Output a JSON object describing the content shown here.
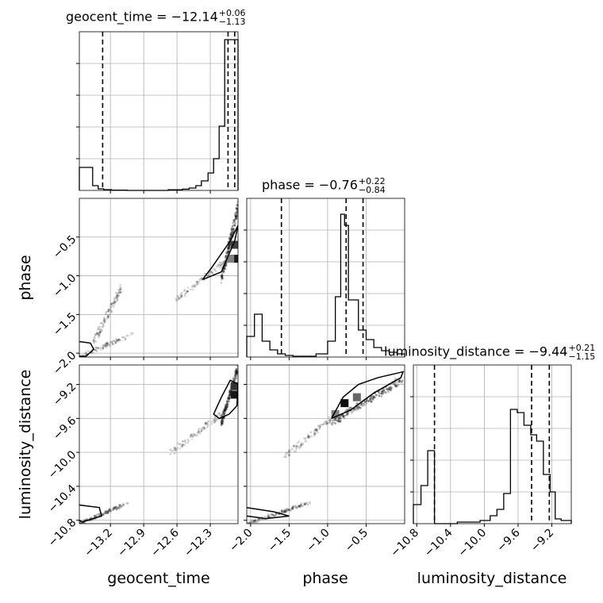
{
  "chart_data": {
    "type": "corner",
    "parameters": [
      "geocent_time",
      "phase",
      "luminosity_distance"
    ],
    "axis_labels": {
      "x": [
        "geocent_time",
        "phase",
        "luminosity_distance"
      ],
      "y": [
        "phase",
        "luminosity_distance"
      ]
    },
    "titles": [
      {
        "param": "geocent_time",
        "name": "geocent_time",
        "median": "−12.14",
        "plus": "+0.06",
        "minus": "−1.13"
      },
      {
        "param": "phase",
        "name": "phase",
        "median": "−0.76",
        "plus": "+0.22",
        "minus": "−0.84"
      },
      {
        "param": "luminosity_distance",
        "name": "luminosity_distance",
        "median": "−9.44",
        "plus": "+0.21",
        "minus": "−1.15"
      }
    ],
    "ranges": {
      "geocent_time": [
        -13.48,
        -12.05
      ],
      "phase": [
        -2.05,
        0.0
      ],
      "luminosity_distance": [
        -10.84,
        -8.97
      ]
    },
    "ticks": {
      "geocent_time": [
        -13.2,
        -12.9,
        -12.6,
        -12.3
      ],
      "phase": [
        -2.0,
        -1.5,
        -1.0,
        -0.5
      ],
      "luminosity_distance_x": [
        -10.8,
        -10.4,
        -10.0,
        -9.6,
        -9.2
      ],
      "phase_y": [
        -2.0,
        -1.5,
        -1.0,
        -0.5
      ],
      "luminosity_distance_y": [
        -10.8,
        -10.4,
        -10.0,
        -9.6,
        -9.2
      ]
    },
    "tick_labels": {
      "geocent_time": [
        "−13.2",
        "−12.9",
        "−12.6",
        "−12.3"
      ],
      "phase": [
        "−2.0",
        "−1.5",
        "−1.0",
        "−0.5"
      ],
      "luminosity_distance_x": [
        "−10.8",
        "−10.4",
        "−10.0",
        "−9.6",
        "−9.2"
      ],
      "phase_y": [
        "−2.0",
        "−1.5",
        "−1.0",
        "−0.5"
      ],
      "luminosity_distance_y": [
        "−10.8",
        "−10.4",
        "−10.0",
        "−9.6",
        "−9.2"
      ]
    },
    "quantiles": {
      "geocent_time": [
        -13.27,
        -12.14,
        -12.08
      ],
      "phase": [
        -1.6,
        -0.76,
        -0.54
      ],
      "luminosity_distance": [
        -10.59,
        -9.44,
        -9.23
      ]
    },
    "histograms": {
      "geocent_time": {
        "edges": [
          -13.48,
          -13.36,
          -13.31,
          -13.26,
          -13.19,
          -13.05,
          -12.87,
          -12.68,
          -12.55,
          -12.49,
          -12.43,
          -12.38,
          -12.32,
          -12.27,
          -12.22,
          -12.17,
          -12.12,
          -12.1,
          -12.07,
          -12.05
        ],
        "counts": [
          0.145,
          0.03,
          0.01,
          0.005,
          0.002,
          0.0,
          0.0,
          0.004,
          0.008,
          0.015,
          0.03,
          0.06,
          0.11,
          0.2,
          0.405,
          0.95,
          0.95,
          0.95,
          0.95
        ]
      },
      "phase": {
        "edges": [
          -2.05,
          -1.95,
          -1.85,
          -1.75,
          -1.65,
          -1.55,
          -1.45,
          -1.3,
          -1.15,
          -1.0,
          -0.9,
          -0.83,
          -0.78,
          -0.73,
          -0.6,
          -0.5,
          -0.4,
          -0.3,
          -0.2,
          -0.1,
          0.0
        ],
        "counts": [
          0.13,
          0.27,
          0.1,
          0.045,
          0.02,
          0.01,
          0.005,
          0.005,
          0.02,
          0.1,
          0.38,
          0.9,
          0.83,
          0.36,
          0.17,
          0.11,
          0.06,
          0.04,
          0.03,
          0.02
        ]
      },
      "luminosity_distance": {
        "edges": [
          -10.84,
          -10.75,
          -10.67,
          -10.59,
          -10.5,
          -10.41,
          -10.32,
          -10.05,
          -9.93,
          -9.85,
          -9.77,
          -9.69,
          -9.61,
          -9.53,
          -9.45,
          -9.38,
          -9.3,
          -9.22,
          -9.16,
          -9.09,
          -9.03,
          -8.97
        ],
        "counts": [
          0.12,
          0.24,
          0.46,
          0.0,
          0.0,
          0.0,
          0.01,
          0.02,
          0.05,
          0.09,
          0.19,
          0.72,
          0.7,
          0.62,
          0.56,
          0.52,
          0.31,
          0.2,
          0.03,
          0.02,
          0.02
        ]
      }
    },
    "panels_2d": [
      {
        "x_param": "geocent_time",
        "y_param": "phase",
        "clusters": [
          {
            "x": [
              -12.2,
              -12.05
            ],
            "y": [
              -1.05,
              -0.1
            ],
            "weight": 0.9,
            "n": 240
          },
          {
            "x": [
              -12.6,
              -12.2
            ],
            "y": [
              -1.3,
              -0.85
            ],
            "weight": 0.35,
            "n": 90
          },
          {
            "x": [
              -13.35,
              -13.1
            ],
            "y": [
              -1.85,
              -1.15
            ],
            "weight": 0.45,
            "n": 120
          },
          {
            "x": [
              -13.48,
              -13.0
            ],
            "y": [
              -2.05,
              -1.75
            ],
            "weight": 0.5,
            "n": 90
          }
        ],
        "contours": [
          {
            "x": [
              -12.37,
              -12.2,
              -12.08,
              -12.05,
              -12.12,
              -12.28,
              -12.37
            ],
            "y": [
              -1.05,
              -0.95,
              -0.55,
              -0.35,
              -0.55,
              -0.88,
              -1.05
            ]
          },
          {
            "x": [
              -13.48,
              -13.38,
              -13.35,
              -13.42,
              -13.48
            ],
            "y": [
              -1.85,
              -1.87,
              -1.95,
              -2.04,
              -2.04
            ]
          }
        ],
        "density_cells": [
          {
            "x": -12.08,
            "y": -0.78,
            "level": 0.9
          },
          {
            "x": -12.08,
            "y": -0.6,
            "level": 0.75
          },
          {
            "x": -12.12,
            "y": -0.78,
            "level": 0.5
          }
        ]
      },
      {
        "x_param": "geocent_time",
        "y_param": "luminosity_distance",
        "clusters": [
          {
            "x": [
              -12.2,
              -12.05
            ],
            "y": [
              -9.65,
              -9.0
            ],
            "weight": 0.9,
            "n": 240
          },
          {
            "x": [
              -12.65,
              -12.2
            ],
            "y": [
              -10.0,
              -9.55
            ],
            "weight": 0.35,
            "n": 100
          },
          {
            "x": [
              -13.48,
              -13.05
            ],
            "y": [
              -10.84,
              -10.6
            ],
            "weight": 0.5,
            "n": 150
          }
        ],
        "contours": [
          {
            "x": [
              -12.22,
              -12.13,
              -12.06,
              -12.05,
              -12.12,
              -12.2,
              -12.27,
              -12.22
            ],
            "y": [
              -9.6,
              -9.55,
              -9.45,
              -9.2,
              -9.15,
              -9.35,
              -9.55,
              -9.6
            ]
          },
          {
            "x": [
              -13.48,
              -13.3,
              -13.28,
              -13.45,
              -13.48
            ],
            "y": [
              -10.62,
              -10.65,
              -10.75,
              -10.82,
              -10.8
            ]
          }
        ],
        "density_cells": [
          {
            "x": -12.08,
            "y": -9.32,
            "level": 0.9
          },
          {
            "x": -12.08,
            "y": -9.22,
            "level": 0.8
          }
        ]
      },
      {
        "x_param": "phase",
        "y_param": "luminosity_distance",
        "clusters": [
          {
            "x": [
              -0.95,
              -0.05
            ],
            "y": [
              -9.65,
              -9.15
            ],
            "weight": 0.9,
            "n": 260
          },
          {
            "x": [
              -1.55,
              -0.95
            ],
            "y": [
              -10.05,
              -9.6
            ],
            "weight": 0.35,
            "n": 100
          },
          {
            "x": [
              -2.05,
              -1.25
            ],
            "y": [
              -10.84,
              -10.6
            ],
            "weight": 0.5,
            "n": 150
          }
        ],
        "contours": [
          {
            "x": [
              -0.95,
              -0.7,
              -0.4,
              -0.05,
              -0.02,
              -0.35,
              -0.6,
              -0.8,
              -0.95
            ],
            "y": [
              -9.6,
              -9.5,
              -9.3,
              -9.12,
              -9.05,
              -9.12,
              -9.2,
              -9.35,
              -9.6
            ]
          },
          {
            "x": [
              -2.05,
              -1.7,
              -1.5,
              -1.8,
              -2.05
            ],
            "y": [
              -10.65,
              -10.7,
              -10.75,
              -10.78,
              -10.75
            ]
          }
        ],
        "density_cells": [
          {
            "x": -0.78,
            "y": -9.42,
            "level": 0.95
          },
          {
            "x": -0.62,
            "y": -9.35,
            "level": 0.6
          },
          {
            "x": -0.9,
            "y": -9.55,
            "level": 0.5
          }
        ]
      }
    ]
  }
}
